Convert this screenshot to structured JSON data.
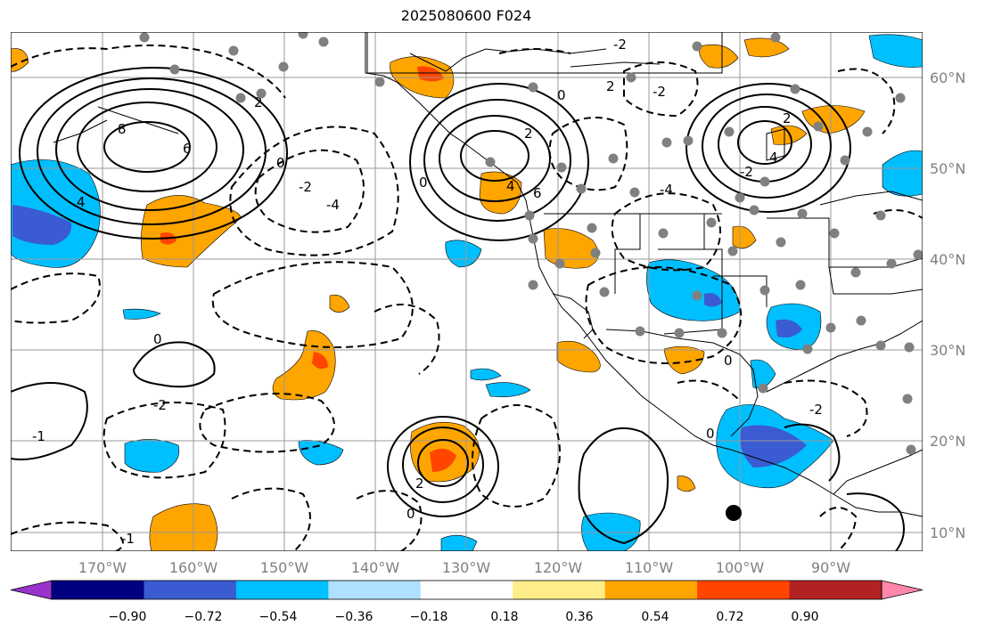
{
  "title": "2025080600 F024",
  "lat_labels": [
    "60°N",
    "50°N",
    "40°N",
    "30°N",
    "20°N",
    "10°N"
  ],
  "lon_labels": [
    "170°W",
    "160°W",
    "150°W",
    "140°W",
    "130°W",
    "120°W",
    "110°W",
    "100°W",
    "90°W"
  ],
  "colorbar": {
    "ticks": [
      "−0.90",
      "−0.72",
      "−0.54",
      "−0.36",
      "−0.18",
      "0.18",
      "0.36",
      "0.54",
      "0.72",
      "0.90"
    ],
    "colors": [
      "#9933cc",
      "#000080",
      "#3a5bd1",
      "#00bfff",
      "#b0e0ff",
      "#ffffff",
      "#ffee88",
      "#ffa500",
      "#ff4500",
      "#b22222",
      "#ff88aa"
    ]
  },
  "contour_labels": [
    "8",
    "6",
    "4",
    "2",
    "0",
    "-2",
    "-4",
    "6",
    "4",
    "2",
    "0",
    "-2",
    "-4",
    "2",
    "0",
    "-2",
    "4",
    "2",
    "-2",
    "0",
    "-1",
    "0",
    "0",
    "-2",
    "2",
    "0",
    "-2",
    "-1"
  ],
  "colors": {
    "positive_mid": "#ffa500",
    "positive_high": "#ff4500",
    "negative_mid": "#00bfff",
    "negative_high": "#3a5bd1",
    "grid": "#999999",
    "station": "#808080"
  }
}
